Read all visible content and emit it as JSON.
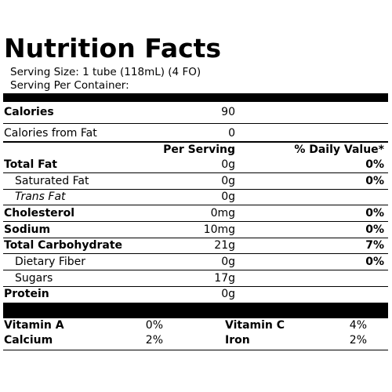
{
  "title": "Nutrition Facts",
  "serving_size": "Serving Size:  1 tube (118mL) (4 FO)",
  "serving_per_container": "Serving Per Container:",
  "calories": {
    "label": "Calories",
    "value": "90"
  },
  "calories_from_fat": {
    "label": "Calories from Fat",
    "value": "0"
  },
  "header": {
    "per_serving": "Per Serving",
    "daily_value": "% Daily Value*"
  },
  "nutrients": [
    {
      "label": "Total Fat",
      "amount": "0g",
      "dv": "0%"
    },
    {
      "label": "Saturated Fat",
      "amount": "0g",
      "dv": "0%"
    },
    {
      "label": "Trans Fat",
      "amount": "0g",
      "dv": ""
    },
    {
      "label": "Cholesterol",
      "amount": "0mg",
      "dv": "0%"
    },
    {
      "label": "Sodium",
      "amount": "10mg",
      "dv": "0%"
    },
    {
      "label": "Total Carbohydrate",
      "amount": "21g",
      "dv": "7%"
    },
    {
      "label": "Dietary Fiber",
      "amount": "0g",
      "dv": "0%"
    },
    {
      "label": "Sugars",
      "amount": "17g",
      "dv": ""
    },
    {
      "label": "Protein",
      "amount": "0g",
      "dv": ""
    }
  ],
  "vitamins": [
    {
      "label": "Vitamin A",
      "value": "0%"
    },
    {
      "label": "Vitamin C",
      "value": "4%"
    },
    {
      "label": "Calcium",
      "value": "2%"
    },
    {
      "label": "Iron",
      "value": "2%"
    }
  ]
}
